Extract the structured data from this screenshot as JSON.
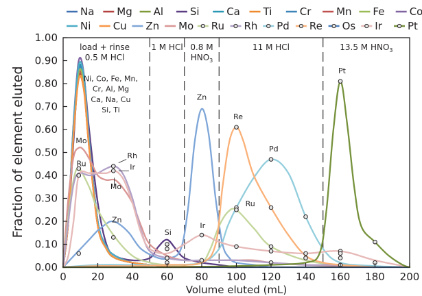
{
  "chart_data": {
    "type": "line",
    "xlabel": "Volume eluted (mL)",
    "ylabel": "Fraction of element eluted",
    "xlim": [
      0,
      200
    ],
    "ylim": [
      0,
      1.0
    ],
    "x_ticks": [
      "0",
      "20",
      "40",
      "60",
      "80",
      "100",
      "120",
      "140",
      "160",
      "180",
      "200"
    ],
    "y_ticks": [
      "0.00",
      "0.10",
      "0.20",
      "0.30",
      "0.40",
      "0.50",
      "0.60",
      "0.70",
      "0.80",
      "0.90",
      "1.00"
    ],
    "grid": false,
    "legend_position": "top",
    "series": [
      {
        "name": "Na",
        "color": "#3f6fb0",
        "marker": false,
        "x": [
          0,
          3,
          6,
          9,
          12,
          15,
          20,
          25,
          30,
          40,
          50,
          60,
          70,
          80,
          90,
          100
        ],
        "y": [
          0,
          0.2,
          0.6,
          0.85,
          0.8,
          0.55,
          0.2,
          0.09,
          0.05,
          0.02,
          0.01,
          0.005,
          0.003,
          0.002,
          0.001,
          0
        ]
      },
      {
        "name": "Mg",
        "color": "#b3423f",
        "marker": false,
        "x": [
          0,
          3,
          6,
          9,
          12,
          15,
          20,
          25,
          30,
          40,
          50,
          60,
          70,
          80,
          90,
          100
        ],
        "y": [
          0,
          0.2,
          0.6,
          0.83,
          0.78,
          0.52,
          0.18,
          0.08,
          0.04,
          0.02,
          0.01,
          0.005,
          0.003,
          0.002,
          0.001,
          0
        ]
      },
      {
        "name": "Al",
        "color": "#7f9a38",
        "marker": false,
        "x": [
          0,
          3,
          6,
          9,
          12,
          15,
          20,
          25,
          30,
          40,
          50,
          60,
          70,
          80,
          90,
          100
        ],
        "y": [
          0,
          0.2,
          0.6,
          0.84,
          0.79,
          0.53,
          0.19,
          0.08,
          0.04,
          0.02,
          0.01,
          0.005,
          0.003,
          0.002,
          0.001,
          0
        ]
      },
      {
        "name": "Si",
        "color": "#5a3d83",
        "marker": false,
        "x": [
          0,
          3,
          6,
          9,
          12,
          15,
          20,
          25,
          30,
          40,
          50,
          55,
          60,
          65,
          70,
          80,
          90,
          100
        ],
        "y": [
          0,
          0.2,
          0.55,
          0.86,
          0.83,
          0.6,
          0.28,
          0.1,
          0.05,
          0.03,
          0.04,
          0.09,
          0.12,
          0.08,
          0.04,
          0.02,
          0.01,
          0
        ]
      },
      {
        "name": "Ca",
        "color": "#2a98b4",
        "marker": false,
        "x": [
          0,
          3,
          6,
          9,
          12,
          15,
          20,
          25,
          30,
          40,
          50,
          60,
          70,
          80,
          90,
          100
        ],
        "y": [
          0,
          0.22,
          0.62,
          0.87,
          0.82,
          0.55,
          0.2,
          0.09,
          0.05,
          0.02,
          0.01,
          0.005,
          0.003,
          0.002,
          0.001,
          0
        ]
      },
      {
        "name": "Ti",
        "color": "#ee8a2d",
        "marker": false,
        "x": [
          0,
          3,
          6,
          9,
          12,
          15,
          20,
          25,
          30,
          40,
          50,
          60,
          70,
          80,
          90,
          100
        ],
        "y": [
          0,
          0.2,
          0.58,
          0.82,
          0.77,
          0.52,
          0.18,
          0.08,
          0.04,
          0.02,
          0.01,
          0.005,
          0.003,
          0.002,
          0.001,
          0
        ]
      },
      {
        "name": "Cr",
        "color": "#3b84b8",
        "marker": false,
        "x": [
          0,
          3,
          6,
          9,
          12,
          15,
          20,
          25,
          30,
          40,
          50,
          60,
          70,
          80,
          90,
          100
        ],
        "y": [
          0,
          0.21,
          0.61,
          0.86,
          0.81,
          0.54,
          0.19,
          0.08,
          0.04,
          0.02,
          0.01,
          0.005,
          0.003,
          0.002,
          0.001,
          0
        ]
      },
      {
        "name": "Mn",
        "color": "#c0504d",
        "marker": false,
        "x": [
          0,
          3,
          6,
          9,
          12,
          15,
          20,
          25,
          30,
          40,
          50,
          60,
          70,
          80,
          90,
          100
        ],
        "y": [
          0,
          0.2,
          0.59,
          0.84,
          0.79,
          0.53,
          0.19,
          0.08,
          0.04,
          0.02,
          0.01,
          0.005,
          0.003,
          0.002,
          0.001,
          0
        ]
      },
      {
        "name": "Fe",
        "color": "#9bbb59",
        "marker": false,
        "x": [
          0,
          3,
          6,
          9,
          12,
          15,
          20,
          25,
          30,
          40,
          50,
          60,
          70,
          80,
          90,
          100
        ],
        "y": [
          0,
          0.21,
          0.6,
          0.85,
          0.8,
          0.54,
          0.19,
          0.08,
          0.04,
          0.02,
          0.01,
          0.005,
          0.003,
          0.002,
          0.001,
          0
        ]
      },
      {
        "name": "Co",
        "color": "#8064a2",
        "marker": false,
        "x": [
          0,
          3,
          6,
          9,
          12,
          15,
          20,
          25,
          30,
          40,
          50,
          60,
          70,
          80,
          90,
          100
        ],
        "y": [
          0,
          0.22,
          0.63,
          0.9,
          0.84,
          0.56,
          0.2,
          0.09,
          0.05,
          0.02,
          0.01,
          0.005,
          0.003,
          0.002,
          0.001,
          0
        ]
      },
      {
        "name": "Ni",
        "color": "#4bacc6",
        "marker": false,
        "x": [
          0,
          3,
          6,
          9,
          12,
          15,
          20,
          25,
          30,
          40,
          50,
          60,
          70,
          80,
          90,
          100
        ],
        "y": [
          0,
          0.22,
          0.62,
          0.88,
          0.83,
          0.55,
          0.2,
          0.09,
          0.05,
          0.02,
          0.01,
          0.005,
          0.003,
          0.002,
          0.001,
          0
        ]
      },
      {
        "name": "Cu",
        "color": "#f79646",
        "marker": false,
        "x": [
          0,
          3,
          6,
          9,
          12,
          15,
          20,
          25,
          30,
          40,
          50,
          60,
          70,
          80,
          90,
          100
        ],
        "y": [
          0,
          0.2,
          0.58,
          0.82,
          0.78,
          0.52,
          0.18,
          0.08,
          0.04,
          0.02,
          0.01,
          0.005,
          0.003,
          0.002,
          0.001,
          0
        ]
      },
      {
        "name": "Zn",
        "color": "#7ea6d8",
        "marker": false,
        "x": [
          0,
          5,
          10,
          15,
          20,
          25,
          28,
          32,
          38,
          45,
          55,
          62,
          68,
          72,
          76,
          80,
          84,
          88,
          92,
          96,
          100,
          110,
          120
        ],
        "y": [
          0,
          0.04,
          0.08,
          0.12,
          0.16,
          0.19,
          0.2,
          0.19,
          0.15,
          0.08,
          0.04,
          0.04,
          0.08,
          0.25,
          0.55,
          0.69,
          0.58,
          0.3,
          0.1,
          0.04,
          0.02,
          0.01,
          0
        ]
      },
      {
        "name": "Mo",
        "color": "#d99694",
        "marker": false,
        "x": [
          0,
          3,
          6,
          9,
          12,
          16,
          20,
          25,
          30,
          35,
          40,
          45,
          50,
          60,
          70,
          80,
          90,
          100,
          110,
          120,
          140,
          160,
          180
        ],
        "y": [
          0.01,
          0.3,
          0.48,
          0.52,
          0.51,
          0.46,
          0.4,
          0.38,
          0.38,
          0.34,
          0.28,
          0.18,
          0.1,
          0.05,
          0.03,
          0.03,
          0.03,
          0.03,
          0.03,
          0.02,
          0.01,
          0.005,
          0
        ]
      },
      {
        "name": "Ru",
        "color": "#c3d69b",
        "marker": true,
        "x": [
          0,
          3,
          6,
          9,
          15,
          20,
          30,
          40,
          50,
          60,
          70,
          80,
          85,
          90,
          95,
          100,
          110,
          120,
          140,
          160,
          180
        ],
        "y": [
          0,
          0.22,
          0.38,
          0.43,
          0.35,
          0.25,
          0.13,
          0.05,
          0.02,
          0.01,
          0.01,
          0.02,
          0.08,
          0.18,
          0.24,
          0.25,
          0.17,
          0.09,
          0.03,
          0.01,
          0
        ]
      },
      {
        "name": "Rh",
        "color": "#b2a1c7",
        "marker": true,
        "x": [
          0,
          3,
          6,
          9,
          15,
          20,
          25,
          30,
          35,
          40,
          45,
          50,
          60,
          70,
          80,
          90,
          100,
          120,
          140,
          160,
          180
        ],
        "y": [
          0,
          0.2,
          0.36,
          0.41,
          0.4,
          0.41,
          0.43,
          0.44,
          0.4,
          0.3,
          0.16,
          0.07,
          0.04,
          0.03,
          0.03,
          0.03,
          0.03,
          0.02,
          0.01,
          0.01,
          0
        ]
      },
      {
        "name": "Pd",
        "color": "#92cddc",
        "marker": true,
        "x": [
          0,
          20,
          40,
          60,
          80,
          90,
          95,
          100,
          110,
          120,
          130,
          140,
          150,
          160,
          180,
          200
        ],
        "y": [
          0,
          0.01,
          0.01,
          0.01,
          0.02,
          0.08,
          0.18,
          0.26,
          0.39,
          0.47,
          0.41,
          0.22,
          0.08,
          0.02,
          0.005,
          0
        ]
      },
      {
        "name": "Re",
        "color": "#fab178",
        "marker": true,
        "x": [
          0,
          20,
          40,
          60,
          80,
          88,
          92,
          96,
          100,
          104,
          110,
          120,
          130,
          140,
          150,
          160,
          180
        ],
        "y": [
          0,
          0.005,
          0.005,
          0.01,
          0.02,
          0.1,
          0.35,
          0.55,
          0.61,
          0.55,
          0.4,
          0.26,
          0.14,
          0.05,
          0.02,
          0.01,
          0
        ]
      },
      {
        "name": "Os",
        "color": "#4a7ebb",
        "marker": true,
        "x": [
          0,
          20,
          40,
          60,
          80,
          100,
          120,
          140,
          160,
          180,
          200
        ],
        "y": [
          0,
          0,
          0,
          0,
          0,
          0,
          0,
          0,
          0,
          0,
          0
        ]
      },
      {
        "name": "Ir",
        "color": "#e6b9b8",
        "marker": true,
        "x": [
          0,
          3,
          6,
          9,
          15,
          20,
          25,
          30,
          35,
          40,
          45,
          50,
          60,
          70,
          80,
          90,
          100,
          120,
          140,
          160,
          180,
          200
        ],
        "y": [
          0,
          0.05,
          0.2,
          0.4,
          0.41,
          0.41,
          0.41,
          0.42,
          0.38,
          0.28,
          0.15,
          0.08,
          0.06,
          0.1,
          0.14,
          0.11,
          0.09,
          0.07,
          0.06,
          0.07,
          0.03,
          0
        ]
      },
      {
        "name": "Pt",
        "color": "#76923c",
        "marker": true,
        "x": [
          0,
          60,
          80,
          100,
          120,
          140,
          148,
          152,
          156,
          160,
          164,
          168,
          172,
          180,
          188,
          196,
          200
        ],
        "y": [
          0,
          0,
          0.002,
          0.005,
          0.01,
          0.02,
          0.06,
          0.25,
          0.6,
          0.81,
          0.62,
          0.35,
          0.18,
          0.11,
          0.05,
          0.01,
          0
        ]
      }
    ],
    "markers": [
      {
        "series": "Ru",
        "x": 9,
        "y": 0.43
      },
      {
        "series": "Rh",
        "x": 29,
        "y": 0.44
      },
      {
        "series": "Ir",
        "x": 29,
        "y": 0.42
      },
      {
        "series": "Mo",
        "x": 9,
        "y": 0.4
      },
      {
        "series": "Zn",
        "x": 29,
        "y": 0.13
      },
      {
        "series": "Ir",
        "x": 9,
        "y": 0.06
      },
      {
        "series": "Si",
        "x": 60,
        "y": 0.1
      },
      {
        "series": "Si",
        "x": 60,
        "y": 0.08
      },
      {
        "series": "Zn",
        "x": 60,
        "y": 0.04
      },
      {
        "series": "Ru",
        "x": 60,
        "y": 0.02
      },
      {
        "series": "Zn",
        "x": 80,
        "y": 0.03
      },
      {
        "series": "Ir",
        "x": 80,
        "y": 0.14
      },
      {
        "series": "Re",
        "x": 100,
        "y": 0.61
      },
      {
        "series": "Pd",
        "x": 100,
        "y": 0.26
      },
      {
        "series": "Ru",
        "x": 100,
        "y": 0.25
      },
      {
        "series": "Ir",
        "x": 100,
        "y": 0.09
      },
      {
        "series": "Pd",
        "x": 120,
        "y": 0.47
      },
      {
        "series": "Re",
        "x": 120,
        "y": 0.26
      },
      {
        "series": "Ru",
        "x": 120,
        "y": 0.09
      },
      {
        "series": "Ru",
        "x": 120,
        "y": 0.07
      },
      {
        "series": "Pt",
        "x": 120,
        "y": 0.02
      },
      {
        "series": "Pd",
        "x": 140,
        "y": 0.22
      },
      {
        "series": "Re",
        "x": 140,
        "y": 0.06
      },
      {
        "series": "Ir",
        "x": 140,
        "y": 0.04
      },
      {
        "series": "Pt",
        "x": 160,
        "y": 0.81
      },
      {
        "series": "Ir",
        "x": 160,
        "y": 0.07
      },
      {
        "series": "Re",
        "x": 160,
        "y": 0.06
      },
      {
        "series": "Pd",
        "x": 160,
        "y": 0.04
      },
      {
        "series": "Ru",
        "x": 160,
        "y": 0.01
      },
      {
        "series": "Pt",
        "x": 180,
        "y": 0.11
      },
      {
        "series": "Ir",
        "x": 180,
        "y": 0.02
      }
    ],
    "region_boundaries": [
      50,
      70,
      90,
      150
    ],
    "regions": [
      {
        "x": 24,
        "line1": "load + rinse",
        "line2": "0.5 M HCl",
        "sub": "",
        "line2_tail": ""
      },
      {
        "x": 60,
        "line1": "1 M HCl",
        "line2": "",
        "sub": "",
        "line2_tail": ""
      },
      {
        "x": 80,
        "line1": "0.8 M",
        "line2": "HNO",
        "sub": "3",
        "line2_tail": ""
      },
      {
        "x": 120,
        "line1": "11 M HCl",
        "line2": "",
        "sub": "",
        "line2_tail": ""
      },
      {
        "x": 175,
        "line1": "13.5 M HNO",
        "line2": "",
        "sub": "3",
        "line2_tail": ""
      }
    ],
    "annotations": [
      {
        "text": "Ni, Co, Fe, Mn,",
        "x": 27.5,
        "y": 0.81,
        "anchor": "middle"
      },
      {
        "text": "Cr, Al, Mg",
        "x": 27.5,
        "y": 0.765,
        "anchor": "middle"
      },
      {
        "text": "Ca, Na, Cu",
        "x": 27.5,
        "y": 0.72,
        "anchor": "middle"
      },
      {
        "text": "Si, Ti",
        "x": 27.5,
        "y": 0.675,
        "anchor": "middle"
      },
      {
        "text": "Mo",
        "x": 10.5,
        "y": 0.54,
        "anchor": "middle"
      },
      {
        "text": "Ru",
        "x": 10.5,
        "y": 0.44,
        "anchor": "middle"
      },
      {
        "text": "Rh",
        "x": 37,
        "y": 0.475,
        "anchor": "start"
      },
      {
        "text": "Ir",
        "x": 38.5,
        "y": 0.425,
        "anchor": "start"
      },
      {
        "text": "Mo",
        "x": 30.5,
        "y": 0.34,
        "anchor": "middle"
      },
      {
        "text": "Zn",
        "x": 31,
        "y": 0.195,
        "anchor": "middle"
      },
      {
        "text": "Si",
        "x": 60.5,
        "y": 0.14,
        "anchor": "middle"
      },
      {
        "text": "Zn",
        "x": 80,
        "y": 0.73,
        "anchor": "middle"
      },
      {
        "text": "Ir",
        "x": 80.5,
        "y": 0.17,
        "anchor": "middle"
      },
      {
        "text": "Re",
        "x": 101,
        "y": 0.645,
        "anchor": "middle"
      },
      {
        "text": "Pd",
        "x": 121.5,
        "y": 0.505,
        "anchor": "middle"
      },
      {
        "text": "Ru",
        "x": 108,
        "y": 0.265,
        "anchor": "middle"
      },
      {
        "text": "Pt",
        "x": 161,
        "y": 0.845,
        "anchor": "middle"
      }
    ],
    "legend_rows": [
      [
        "Na",
        "Mg",
        "Al",
        "Si",
        "Ca",
        "Ti",
        "Cr",
        "Mn",
        "Fe",
        "Co"
      ],
      [
        "Ni",
        "Cu",
        "Zn",
        "Mo",
        "Ru",
        "Rh",
        "Pd",
        "Re",
        "Os",
        "Ir",
        "Pt"
      ]
    ]
  }
}
